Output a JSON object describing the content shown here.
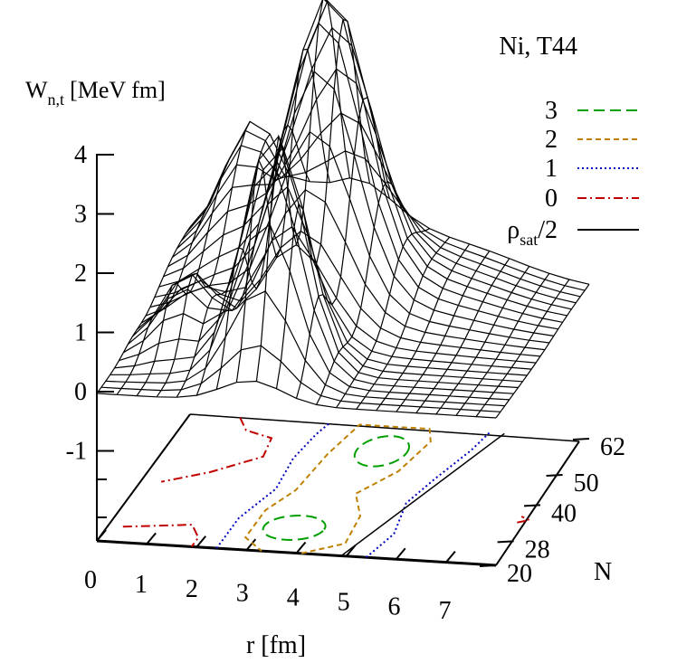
{
  "chart_data": {
    "type": "surface3d",
    "title": "Ni, T44",
    "zlabel_main": "W",
    "zlabel_sub": "n,t",
    "zlabel_unit": "[MeV fm]",
    "xlabel": "r [fm]",
    "ylabel": "N",
    "z_ticks": [
      "4",
      "3",
      "2",
      "1",
      "0",
      "-1"
    ],
    "z_tick_values": [
      4,
      3,
      2,
      1,
      0,
      -1
    ],
    "x_ticks": [
      "0",
      "1",
      "2",
      "3",
      "4",
      "5",
      "6",
      "7"
    ],
    "y_ticks": [
      "20",
      "28",
      "40",
      "50",
      "62"
    ],
    "xlim": [
      0,
      8
    ],
    "ylim": [
      20,
      62
    ],
    "zlim": [
      -1,
      4
    ],
    "legend_position": "top-right",
    "legend": [
      {
        "label": "3",
        "color": "#00a000",
        "dash": "long-dash"
      },
      {
        "label": "2",
        "color": "#c08000",
        "dash": "short-dash"
      },
      {
        "label": "1",
        "color": "#0000c0",
        "dash": "dotted"
      },
      {
        "label": "0",
        "color": "#c00000",
        "dash": "dash-dot"
      },
      {
        "label": "ρ",
        "label_sub": "sat",
        "label_suffix": "/2",
        "color": "#000000",
        "dash": "solid"
      }
    ],
    "surface_description_peaks": [
      {
        "r": 3.0,
        "N": 28,
        "z": 4.0
      },
      {
        "r": 3.2,
        "N": 50,
        "z": 4.7
      },
      {
        "r": 1.2,
        "N": 62,
        "z": 2.1
      }
    ]
  }
}
